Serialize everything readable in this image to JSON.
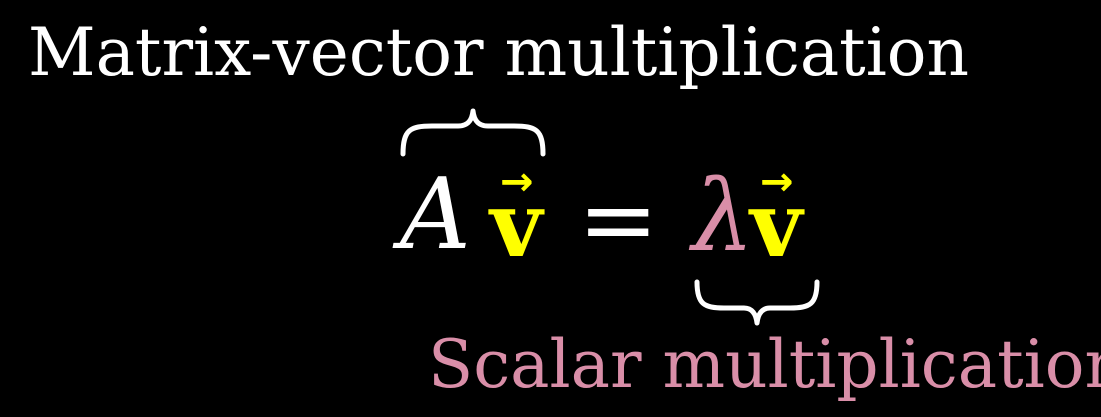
{
  "labels": {
    "top": "Matrix-vector multiplication",
    "bottom": "Scalar multiplication"
  },
  "equation": {
    "matrix": "A",
    "vector": "v",
    "vector_arrow": "→",
    "equals": "=",
    "scalar": "λ"
  },
  "colors": {
    "background": "#000000",
    "white": "#ffffff",
    "vector_yellow": "#ffff00",
    "scalar_pink": "#d98ea8"
  },
  "icons": {
    "top_brace": "overbrace",
    "bottom_brace": "underbrace"
  }
}
